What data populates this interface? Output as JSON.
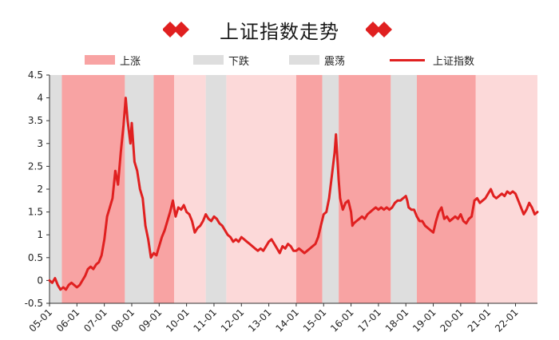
{
  "colors": {
    "up": "#f8a3a3",
    "down": "#dedede",
    "range": "#fcd9d9",
    "line": "#e02020",
    "accent": "#e02020"
  },
  "chart_data": {
    "type": "line",
    "title": "上证指数走势",
    "legend": [
      {
        "name": "上涨",
        "kind": "up"
      },
      {
        "name": "下跌",
        "kind": "down"
      },
      {
        "name": "震荡",
        "kind": "range"
      },
      {
        "name": "上证指数",
        "kind": "line"
      }
    ],
    "legend_note": "上涨 and 震荡 swatches render pink/light-pink; 下跌 and 震荡 legend swatch shown grey in original legend",
    "xlabels": [
      "05-01",
      "06-01",
      "07-01",
      "08-01",
      "09-01",
      "10-01",
      "11-01",
      "12-01",
      "13-01",
      "14-01",
      "15-01",
      "16-01",
      "17-01",
      "18-01",
      "19-01",
      "20-01",
      "21-01",
      "22-01"
    ],
    "xlim": [
      2005.0,
      2022.8
    ],
    "ylim": [
      -0.5,
      4.5
    ],
    "yticks": [
      -0.5,
      0,
      0.5,
      1,
      1.5,
      2,
      2.5,
      3,
      3.5,
      4,
      4.5
    ],
    "ytick_labels": [
      "-0.5",
      "0",
      "0.5",
      "1",
      "1.5",
      "2",
      "2.5",
      "3",
      "3.5",
      "4",
      "4.5"
    ],
    "regimes": [
      {
        "start": 2005.0,
        "end": 2005.45,
        "kind": "down"
      },
      {
        "start": 2005.45,
        "end": 2007.75,
        "kind": "up"
      },
      {
        "start": 2007.75,
        "end": 2008.8,
        "kind": "down"
      },
      {
        "start": 2008.8,
        "end": 2009.55,
        "kind": "up"
      },
      {
        "start": 2009.55,
        "end": 2010.7,
        "kind": "range"
      },
      {
        "start": 2010.7,
        "end": 2011.45,
        "kind": "down"
      },
      {
        "start": 2011.45,
        "end": 2014.0,
        "kind": "range"
      },
      {
        "start": 2014.0,
        "end": 2014.95,
        "kind": "up"
      },
      {
        "start": 2014.95,
        "end": 2015.55,
        "kind": "down"
      },
      {
        "start": 2015.55,
        "end": 2017.45,
        "kind": "up"
      },
      {
        "start": 2017.45,
        "end": 2018.4,
        "kind": "down"
      },
      {
        "start": 2018.4,
        "end": 2020.55,
        "kind": "up"
      },
      {
        "start": 2020.55,
        "end": 2022.8,
        "kind": "range"
      }
    ],
    "series": [
      {
        "values": [
          [
            2005.0,
            0.0
          ],
          [
            2005.1,
            -0.05
          ],
          [
            2005.2,
            0.05
          ],
          [
            2005.3,
            -0.1
          ],
          [
            2005.4,
            -0.2
          ],
          [
            2005.5,
            -0.15
          ],
          [
            2005.6,
            -0.2
          ],
          [
            2005.7,
            -0.1
          ],
          [
            2005.8,
            -0.05
          ],
          [
            2005.9,
            -0.1
          ],
          [
            2006.0,
            -0.15
          ],
          [
            2006.1,
            -0.1
          ],
          [
            2006.2,
            0.0
          ],
          [
            2006.3,
            0.1
          ],
          [
            2006.4,
            0.25
          ],
          [
            2006.5,
            0.3
          ],
          [
            2006.6,
            0.25
          ],
          [
            2006.7,
            0.35
          ],
          [
            2006.8,
            0.4
          ],
          [
            2006.9,
            0.55
          ],
          [
            2007.0,
            0.9
          ],
          [
            2007.1,
            1.4
          ],
          [
            2007.2,
            1.6
          ],
          [
            2007.3,
            1.8
          ],
          [
            2007.4,
            2.4
          ],
          [
            2007.5,
            2.1
          ],
          [
            2007.6,
            2.8
          ],
          [
            2007.7,
            3.4
          ],
          [
            2007.78,
            4.0
          ],
          [
            2007.85,
            3.5
          ],
          [
            2007.95,
            3.0
          ],
          [
            2008.0,
            3.45
          ],
          [
            2008.1,
            2.6
          ],
          [
            2008.2,
            2.4
          ],
          [
            2008.3,
            2.0
          ],
          [
            2008.4,
            1.8
          ],
          [
            2008.5,
            1.2
          ],
          [
            2008.6,
            0.9
          ],
          [
            2008.7,
            0.5
          ],
          [
            2008.8,
            0.6
          ],
          [
            2008.9,
            0.55
          ],
          [
            2009.0,
            0.75
          ],
          [
            2009.1,
            0.95
          ],
          [
            2009.2,
            1.1
          ],
          [
            2009.3,
            1.3
          ],
          [
            2009.4,
            1.5
          ],
          [
            2009.5,
            1.75
          ],
          [
            2009.6,
            1.4
          ],
          [
            2009.7,
            1.6
          ],
          [
            2009.8,
            1.55
          ],
          [
            2009.9,
            1.65
          ],
          [
            2010.0,
            1.5
          ],
          [
            2010.1,
            1.45
          ],
          [
            2010.2,
            1.3
          ],
          [
            2010.3,
            1.05
          ],
          [
            2010.4,
            1.15
          ],
          [
            2010.5,
            1.2
          ],
          [
            2010.6,
            1.3
          ],
          [
            2010.7,
            1.45
          ],
          [
            2010.8,
            1.35
          ],
          [
            2010.9,
            1.3
          ],
          [
            2011.0,
            1.4
          ],
          [
            2011.1,
            1.35
          ],
          [
            2011.2,
            1.25
          ],
          [
            2011.3,
            1.2
          ],
          [
            2011.4,
            1.1
          ],
          [
            2011.5,
            1.0
          ],
          [
            2011.6,
            0.95
          ],
          [
            2011.7,
            0.85
          ],
          [
            2011.8,
            0.9
          ],
          [
            2011.9,
            0.85
          ],
          [
            2012.0,
            0.95
          ],
          [
            2012.1,
            0.9
          ],
          [
            2012.2,
            0.85
          ],
          [
            2012.3,
            0.8
          ],
          [
            2012.4,
            0.75
          ],
          [
            2012.5,
            0.7
          ],
          [
            2012.6,
            0.65
          ],
          [
            2012.7,
            0.7
          ],
          [
            2012.8,
            0.65
          ],
          [
            2012.9,
            0.75
          ],
          [
            2013.0,
            0.85
          ],
          [
            2013.1,
            0.9
          ],
          [
            2013.2,
            0.8
          ],
          [
            2013.3,
            0.7
          ],
          [
            2013.4,
            0.6
          ],
          [
            2013.5,
            0.75
          ],
          [
            2013.6,
            0.7
          ],
          [
            2013.7,
            0.8
          ],
          [
            2013.8,
            0.75
          ],
          [
            2013.9,
            0.65
          ],
          [
            2014.0,
            0.65
          ],
          [
            2014.1,
            0.7
          ],
          [
            2014.2,
            0.65
          ],
          [
            2014.3,
            0.6
          ],
          [
            2014.4,
            0.65
          ],
          [
            2014.5,
            0.7
          ],
          [
            2014.6,
            0.75
          ],
          [
            2014.7,
            0.8
          ],
          [
            2014.8,
            0.95
          ],
          [
            2014.9,
            1.2
          ],
          [
            2015.0,
            1.45
          ],
          [
            2015.1,
            1.5
          ],
          [
            2015.2,
            1.8
          ],
          [
            2015.3,
            2.3
          ],
          [
            2015.4,
            2.8
          ],
          [
            2015.45,
            3.2
          ],
          [
            2015.5,
            2.7
          ],
          [
            2015.55,
            2.2
          ],
          [
            2015.6,
            1.8
          ],
          [
            2015.7,
            1.55
          ],
          [
            2015.8,
            1.7
          ],
          [
            2015.9,
            1.75
          ],
          [
            2016.0,
            1.5
          ],
          [
            2016.05,
            1.2
          ],
          [
            2016.1,
            1.25
          ],
          [
            2016.2,
            1.3
          ],
          [
            2016.3,
            1.35
          ],
          [
            2016.4,
            1.4
          ],
          [
            2016.5,
            1.35
          ],
          [
            2016.6,
            1.45
          ],
          [
            2016.7,
            1.5
          ],
          [
            2016.8,
            1.55
          ],
          [
            2016.9,
            1.6
          ],
          [
            2017.0,
            1.55
          ],
          [
            2017.1,
            1.6
          ],
          [
            2017.2,
            1.55
          ],
          [
            2017.3,
            1.6
          ],
          [
            2017.4,
            1.55
          ],
          [
            2017.5,
            1.6
          ],
          [
            2017.6,
            1.7
          ],
          [
            2017.7,
            1.75
          ],
          [
            2017.8,
            1.75
          ],
          [
            2017.9,
            1.8
          ],
          [
            2018.0,
            1.85
          ],
          [
            2018.05,
            1.75
          ],
          [
            2018.1,
            1.6
          ],
          [
            2018.2,
            1.55
          ],
          [
            2018.3,
            1.55
          ],
          [
            2018.4,
            1.4
          ],
          [
            2018.5,
            1.3
          ],
          [
            2018.6,
            1.3
          ],
          [
            2018.7,
            1.2
          ],
          [
            2018.8,
            1.15
          ],
          [
            2018.9,
            1.1
          ],
          [
            2019.0,
            1.05
          ],
          [
            2019.1,
            1.3
          ],
          [
            2019.2,
            1.5
          ],
          [
            2019.3,
            1.6
          ],
          [
            2019.4,
            1.35
          ],
          [
            2019.5,
            1.4
          ],
          [
            2019.6,
            1.3
          ],
          [
            2019.7,
            1.35
          ],
          [
            2019.8,
            1.4
          ],
          [
            2019.9,
            1.35
          ],
          [
            2020.0,
            1.45
          ],
          [
            2020.1,
            1.3
          ],
          [
            2020.2,
            1.25
          ],
          [
            2020.3,
            1.35
          ],
          [
            2020.4,
            1.4
          ],
          [
            2020.5,
            1.75
          ],
          [
            2020.6,
            1.8
          ],
          [
            2020.7,
            1.7
          ],
          [
            2020.8,
            1.75
          ],
          [
            2020.9,
            1.8
          ],
          [
            2021.0,
            1.9
          ],
          [
            2021.1,
            2.0
          ],
          [
            2021.2,
            1.85
          ],
          [
            2021.3,
            1.8
          ],
          [
            2021.4,
            1.85
          ],
          [
            2021.5,
            1.9
          ],
          [
            2021.6,
            1.85
          ],
          [
            2021.7,
            1.95
          ],
          [
            2021.8,
            1.9
          ],
          [
            2021.9,
            1.95
          ],
          [
            2022.0,
            1.9
          ],
          [
            2022.1,
            1.75
          ],
          [
            2022.2,
            1.6
          ],
          [
            2022.3,
            1.45
          ],
          [
            2022.4,
            1.55
          ],
          [
            2022.5,
            1.7
          ],
          [
            2022.6,
            1.6
          ],
          [
            2022.7,
            1.45
          ],
          [
            2022.8,
            1.5
          ]
        ]
      }
    ]
  }
}
